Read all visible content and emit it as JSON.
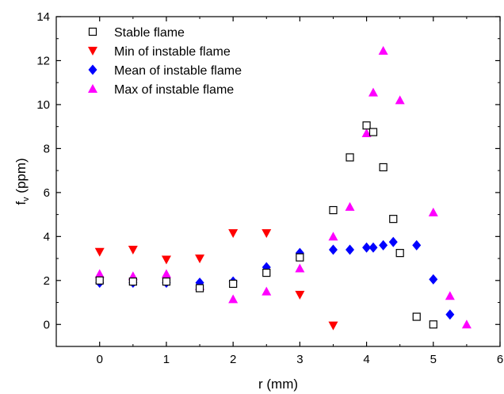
{
  "chart_data": {
    "type": "scatter",
    "title": "",
    "xlabel": "r (mm)",
    "ylabel_main": "f",
    "ylabel_sub": "v",
    "ylabel_unit": " (ppm)",
    "xlim": [
      -0.65,
      6
    ],
    "ylim": [
      -1,
      14
    ],
    "xticks": [
      0,
      1,
      2,
      3,
      4,
      5,
      6
    ],
    "yticks": [
      0,
      2,
      4,
      6,
      8,
      10,
      12,
      14
    ],
    "grid": false,
    "legend_position": "top-left",
    "series": [
      {
        "name": "Stable flame",
        "marker": "square-open",
        "color": "#000000",
        "x": [
          0,
          0.5,
          1,
          1.5,
          2,
          2.5,
          3,
          3.5,
          3.75,
          4,
          4.1,
          4.25,
          4.4,
          4.5,
          4.75,
          5
        ],
        "y": [
          2.0,
          1.95,
          1.95,
          1.65,
          1.85,
          2.35,
          3.05,
          5.2,
          7.6,
          9.05,
          8.75,
          7.15,
          4.8,
          3.25,
          0.35,
          0.0
        ]
      },
      {
        "name": "Min of instable flame",
        "marker": "triangle-down",
        "color": "#ff0000",
        "x": [
          0,
          0.5,
          1,
          1.5,
          2,
          2.5,
          3,
          3.5
        ],
        "y": [
          3.3,
          3.4,
          2.95,
          3.0,
          4.15,
          4.15,
          1.35,
          -0.05
        ]
      },
      {
        "name": "Mean of instable flame",
        "marker": "diamond",
        "color": "#0000ff",
        "x": [
          0,
          0.5,
          1,
          1.5,
          2,
          2.5,
          3,
          3.5,
          3.75,
          4,
          4.1,
          4.25,
          4.4,
          4.75,
          5,
          5.25
        ],
        "y": [
          1.9,
          1.9,
          1.9,
          1.9,
          1.95,
          2.6,
          3.25,
          3.4,
          3.4,
          3.5,
          3.5,
          3.6,
          3.75,
          3.6,
          2.05,
          0.45
        ]
      },
      {
        "name": "Max of instable flame",
        "marker": "triangle-up",
        "color": "#ff00ff",
        "x": [
          0,
          0.5,
          1,
          1.5,
          2,
          2.5,
          3,
          3.5,
          3.75,
          4,
          4.1,
          4.25,
          4.5,
          5,
          5.25,
          5.5
        ],
        "y": [
          2.3,
          2.2,
          2.3,
          1.75,
          1.15,
          1.5,
          2.55,
          4.0,
          5.35,
          8.7,
          10.55,
          12.45,
          10.2,
          5.1,
          1.3,
          0.0
        ]
      }
    ]
  }
}
